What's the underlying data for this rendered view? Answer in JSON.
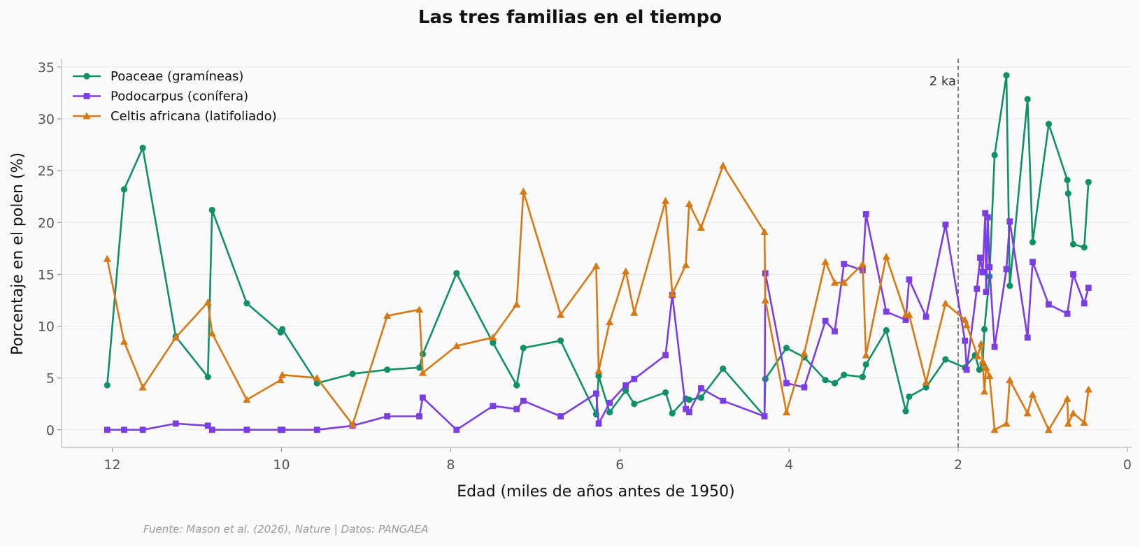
{
  "chart_data": {
    "type": "line",
    "title": "Las tres familias en el tiempo",
    "xlabel": "Edad (miles de años antes de 1950)",
    "ylabel": "Porcentaje en el polen (%)",
    "xlim": [
      12.6,
      -0.05
    ],
    "ylim": [
      -1.7,
      35.8
    ],
    "x_reversed": true,
    "x_ticks": [
      12,
      10,
      8,
      6,
      4,
      2,
      0
    ],
    "y_ticks": [
      0,
      5,
      10,
      15,
      20,
      25,
      30,
      35
    ],
    "grid": "horizontal",
    "legend_position": "top-left",
    "annotation": {
      "x": 2,
      "label": "2 ka",
      "style": "dashed"
    },
    "source": "Fuente: Mason et al. (2026), Nature | Datos: PANGAEA",
    "series": [
      {
        "name": "Poaceae (gramíneas)",
        "color": "#0f9068",
        "marker": "circle",
        "x": [
          12.06,
          11.86,
          11.64,
          11.25,
          10.87,
          10.82,
          10.41,
          10.01,
          9.99,
          9.58,
          9.16,
          8.75,
          8.37,
          8.33,
          7.93,
          7.5,
          7.22,
          7.14,
          6.7,
          6.28,
          6.25,
          6.12,
          5.93,
          5.83,
          5.46,
          5.38,
          5.22,
          5.18,
          5.04,
          4.78,
          4.29,
          4.28,
          4.03,
          3.82,
          3.57,
          3.46,
          3.35,
          3.13,
          3.09,
          2.85,
          2.62,
          2.58,
          2.38,
          2.15,
          1.92,
          1.8,
          1.75,
          1.71,
          1.69,
          1.63,
          1.57,
          1.43,
          1.39,
          1.18,
          1.12,
          0.93,
          0.71,
          0.7,
          0.64,
          0.51,
          0.46
        ],
        "y": [
          4.3,
          23.2,
          27.2,
          9.0,
          5.1,
          21.2,
          12.2,
          9.4,
          9.7,
          4.5,
          5.4,
          5.8,
          6.0,
          7.3,
          15.1,
          8.4,
          4.3,
          7.9,
          8.6,
          1.5,
          5.2,
          1.7,
          3.8,
          2.5,
          3.6,
          1.6,
          3.0,
          2.9,
          3.1,
          5.9,
          1.3,
          4.9,
          7.9,
          7.0,
          4.8,
          4.5,
          5.3,
          5.1,
          6.3,
          9.6,
          1.8,
          3.2,
          4.1,
          6.8,
          6.0,
          7.2,
          5.8,
          6.4,
          9.7,
          14.8,
          26.5,
          34.2,
          13.9,
          31.9,
          18.1,
          29.5,
          24.1,
          22.8,
          17.9,
          17.6,
          23.9
        ]
      },
      {
        "name": "Podocarpus (conífera)",
        "color": "#7b3ee5",
        "marker": "square",
        "x": [
          12.06,
          11.86,
          11.64,
          11.25,
          10.87,
          10.82,
          10.41,
          10.01,
          9.99,
          9.58,
          9.16,
          8.75,
          8.37,
          8.33,
          7.93,
          7.5,
          7.22,
          7.14,
          6.7,
          6.28,
          6.25,
          6.12,
          5.93,
          5.83,
          5.46,
          5.38,
          5.22,
          5.18,
          5.04,
          4.78,
          4.29,
          4.28,
          4.03,
          3.82,
          3.57,
          3.46,
          3.35,
          3.13,
          3.09,
          2.85,
          2.62,
          2.58,
          2.38,
          2.15,
          1.92,
          1.9,
          1.78,
          1.74,
          1.71,
          1.68,
          1.67,
          1.65,
          1.63,
          1.57,
          1.43,
          1.39,
          1.18,
          1.12,
          0.93,
          0.71,
          0.64,
          0.51,
          0.46
        ],
        "y": [
          0.0,
          0.0,
          0.0,
          0.6,
          0.4,
          0.0,
          0.0,
          0.0,
          0.0,
          0.0,
          0.4,
          1.3,
          1.3,
          3.1,
          0.0,
          2.3,
          2.0,
          2.8,
          1.3,
          3.5,
          0.6,
          2.6,
          4.3,
          4.9,
          7.2,
          13.0,
          2.0,
          1.7,
          4.0,
          2.8,
          1.3,
          15.1,
          4.5,
          4.1,
          10.5,
          9.5,
          16.0,
          15.4,
          20.8,
          11.4,
          10.6,
          14.5,
          10.9,
          19.8,
          8.6,
          5.8,
          13.6,
          16.6,
          15.2,
          20.9,
          13.3,
          20.5,
          15.7,
          8.0,
          15.5,
          20.1,
          8.9,
          16.2,
          12.1,
          11.2,
          15.0,
          12.2,
          13.7
        ]
      },
      {
        "name": "Celtis africana (latifoliado)",
        "color": "#d77914",
        "marker": "triangle",
        "x": [
          12.06,
          11.86,
          11.64,
          11.25,
          10.87,
          10.82,
          10.41,
          10.01,
          9.99,
          9.58,
          9.16,
          8.75,
          8.37,
          8.33,
          7.93,
          7.5,
          7.22,
          7.14,
          6.7,
          6.28,
          6.25,
          6.12,
          5.93,
          5.83,
          5.46,
          5.38,
          5.22,
          5.18,
          5.04,
          4.78,
          4.29,
          4.28,
          4.03,
          3.82,
          3.57,
          3.46,
          3.35,
          3.13,
          3.09,
          2.85,
          2.62,
          2.58,
          2.38,
          2.15,
          1.92,
          1.9,
          1.77,
          1.73,
          1.71,
          1.69,
          1.67,
          1.63,
          1.57,
          1.43,
          1.39,
          1.18,
          1.12,
          0.93,
          0.71,
          0.7,
          0.64,
          0.51,
          0.46
        ],
        "y": [
          16.5,
          8.5,
          4.1,
          8.9,
          12.3,
          9.3,
          2.9,
          4.8,
          5.3,
          5.0,
          0.5,
          11.0,
          11.6,
          5.5,
          8.1,
          8.9,
          12.1,
          23.0,
          11.1,
          15.8,
          5.7,
          10.4,
          15.3,
          11.3,
          22.1,
          13.1,
          15.9,
          21.8,
          19.5,
          25.5,
          19.1,
          12.5,
          1.7,
          7.4,
          16.2,
          14.2,
          14.2,
          16.0,
          7.2,
          16.7,
          11.1,
          11.1,
          4.6,
          12.2,
          10.6,
          10.1,
          7.1,
          8.3,
          6.6,
          3.7,
          6.0,
          5.2,
          0.0,
          0.6,
          4.8,
          1.6,
          3.4,
          0.0,
          3.0,
          0.6,
          1.6,
          0.7,
          3.9
        ]
      }
    ]
  }
}
